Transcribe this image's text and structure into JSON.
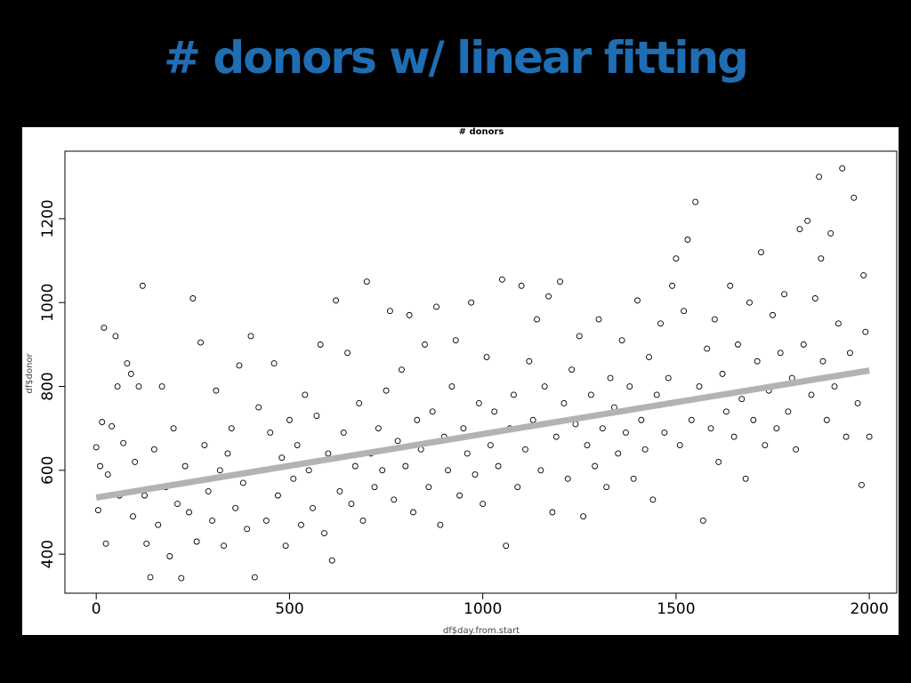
{
  "slide": {
    "title": "# donors w/ linear fitting"
  },
  "chart_data": {
    "type": "scatter",
    "title": "# donors",
    "xlabel": "df$day.from.start",
    "ylabel": "df$donor",
    "xlim": [
      -81,
      2071
    ],
    "ylim": [
      307,
      1361
    ],
    "xticks": [
      0,
      500,
      1000,
      1500,
      2000
    ],
    "yticks": [
      400,
      600,
      800,
      1000,
      1200
    ],
    "x": [
      0,
      5,
      10,
      15,
      20,
      25,
      30,
      40,
      50,
      55,
      60,
      70,
      80,
      90,
      95,
      100,
      110,
      120,
      125,
      130,
      140,
      150,
      160,
      170,
      180,
      190,
      200,
      210,
      220,
      230,
      240,
      250,
      260,
      270,
      280,
      290,
      300,
      310,
      320,
      330,
      340,
      350,
      360,
      370,
      380,
      390,
      400,
      410,
      420,
      430,
      440,
      450,
      460,
      470,
      480,
      490,
      500,
      510,
      520,
      530,
      540,
      550,
      560,
      570,
      580,
      590,
      600,
      610,
      620,
      630,
      640,
      650,
      660,
      670,
      680,
      690,
      700,
      710,
      720,
      730,
      740,
      750,
      760,
      770,
      780,
      790,
      800,
      810,
      820,
      830,
      840,
      850,
      860,
      870,
      880,
      890,
      900,
      910,
      920,
      930,
      940,
      950,
      960,
      970,
      980,
      990,
      1000,
      1010,
      1020,
      1030,
      1040,
      1050,
      1060,
      1070,
      1080,
      1090,
      1100,
      1110,
      1120,
      1130,
      1140,
      1150,
      1160,
      1170,
      1180,
      1190,
      1200,
      1210,
      1220,
      1230,
      1240,
      1250,
      1260,
      1270,
      1280,
      1290,
      1300,
      1310,
      1320,
      1330,
      1340,
      1350,
      1360,
      1370,
      1380,
      1390,
      1400,
      1410,
      1420,
      1430,
      1440,
      1450,
      1460,
      1470,
      1480,
      1490,
      1500,
      1510,
      1520,
      1530,
      1540,
      1550,
      1560,
      1570,
      1580,
      1590,
      1600,
      1610,
      1620,
      1630,
      1640,
      1650,
      1660,
      1670,
      1680,
      1690,
      1700,
      1710,
      1720,
      1730,
      1740,
      1750,
      1760,
      1770,
      1780,
      1790,
      1800,
      1810,
      1820,
      1830,
      1840,
      1850,
      1860,
      1870,
      1875,
      1880,
      1890,
      1900,
      1910,
      1920,
      1930,
      1940,
      1950,
      1960,
      1970,
      1980,
      1985,
      1990,
      2000
    ],
    "series": [
      {
        "color": "#000000",
        "values": [
          655,
          505,
          610,
          715,
          940,
          425,
          590,
          705,
          920,
          800,
          540,
          665,
          855,
          830,
          490,
          620,
          800,
          1040,
          540,
          425,
          345,
          650,
          470,
          800,
          560,
          395,
          700,
          520,
          343,
          610,
          500,
          1010,
          430,
          905,
          660,
          550,
          480,
          790,
          600,
          420,
          640,
          700,
          510,
          850,
          570,
          460,
          920,
          345,
          750,
          600,
          480,
          690,
          855,
          540,
          630,
          420,
          720,
          580,
          660,
          470,
          780,
          600,
          510,
          730,
          900,
          450,
          640,
          385,
          1005,
          550,
          690,
          880,
          520,
          610,
          760,
          480,
          1050,
          640,
          560,
          700,
          600,
          790,
          980,
          530,
          670,
          840,
          610,
          970,
          500,
          720,
          650,
          900,
          560,
          740,
          990,
          470,
          680,
          600,
          800,
          910,
          540,
          700,
          640,
          1000,
          590,
          760,
          520,
          870,
          660,
          740,
          610,
          1055,
          420,
          700,
          780,
          560,
          1040,
          650,
          860,
          720,
          960,
          600,
          800,
          1015,
          500,
          680,
          1050,
          760,
          580,
          840,
          710,
          920,
          490,
          660,
          780,
          610,
          960,
          700,
          560,
          820,
          750,
          640,
          910,
          690,
          800,
          580,
          1005,
          720,
          650,
          870,
          530,
          780,
          950,
          690,
          820,
          1040,
          1105,
          660,
          980,
          1150,
          720,
          1240,
          800,
          480,
          890,
          700,
          960,
          620,
          830,
          740,
          1040,
          680,
          900,
          770,
          580,
          1000,
          720,
          860,
          1120,
          660,
          790,
          970,
          700,
          880,
          1020,
          740,
          820,
          650,
          1175,
          900,
          1195,
          780,
          1010,
          1300,
          1105,
          860,
          720,
          1165,
          800,
          950,
          1320,
          680,
          880,
          1250,
          760,
          565,
          1065,
          930,
          680
        ]
      }
    ],
    "fit": {
      "color": "#b3b3b3",
      "x": [
        0,
        2000
      ],
      "values": [
        535,
        838
      ]
    }
  }
}
